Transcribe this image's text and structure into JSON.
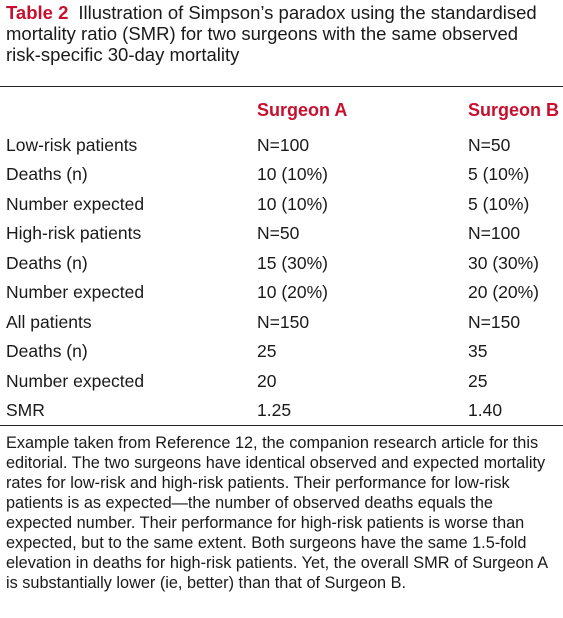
{
  "caption": {
    "label": "Table 2",
    "text": "Illustration of Simpson’s paradox using the standardised mortality ratio (SMR) for two surgeons with the same observed risk-specific 30-day mortality"
  },
  "table": {
    "columns": [
      "",
      "Surgeon A",
      "Surgeon B"
    ],
    "rows": [
      {
        "label": "Low-risk patients",
        "a": "N=100",
        "b": "N=50"
      },
      {
        "label": "Deaths (n)",
        "a": "10 (10%)",
        "b": "5 (10%)"
      },
      {
        "label": "Number expected",
        "a": "10 (10%)",
        "b": "5 (10%)"
      },
      {
        "label": "High-risk patients",
        "a": "N=50",
        "b": "N=100"
      },
      {
        "label": "Deaths (n)",
        "a": "15 (30%)",
        "b": "30 (30%)"
      },
      {
        "label": "Number expected",
        "a": "10 (20%)",
        "b": "20 (20%)"
      },
      {
        "label": "All patients",
        "a": "N=150",
        "b": "N=150"
      },
      {
        "label": "Deaths (n)",
        "a": "25",
        "b": "35"
      },
      {
        "label": "Number expected",
        "a": "20",
        "b": "25"
      },
      {
        "label": "SMR",
        "a": "1.25",
        "b": "1.40"
      }
    ]
  },
  "footnote": "Example taken from Reference 12, the companion research article for this editorial. The two surgeons have identical observed and expected mortality rates for low-risk and high-risk patients. Their performance for low-risk patients is as expected—the number of observed deaths equals the expected number. Their performance for high-risk patients is worse than expected, but to the same extent. Both surgeons have the same 1.5-fold elevation in deaths for high-risk patients. Yet, the overall SMR of Surgeon A is substantially lower (ie, better) than that of Surgeon B.",
  "colors": {
    "accent": "#c8102e",
    "text": "#1a1a1a"
  }
}
